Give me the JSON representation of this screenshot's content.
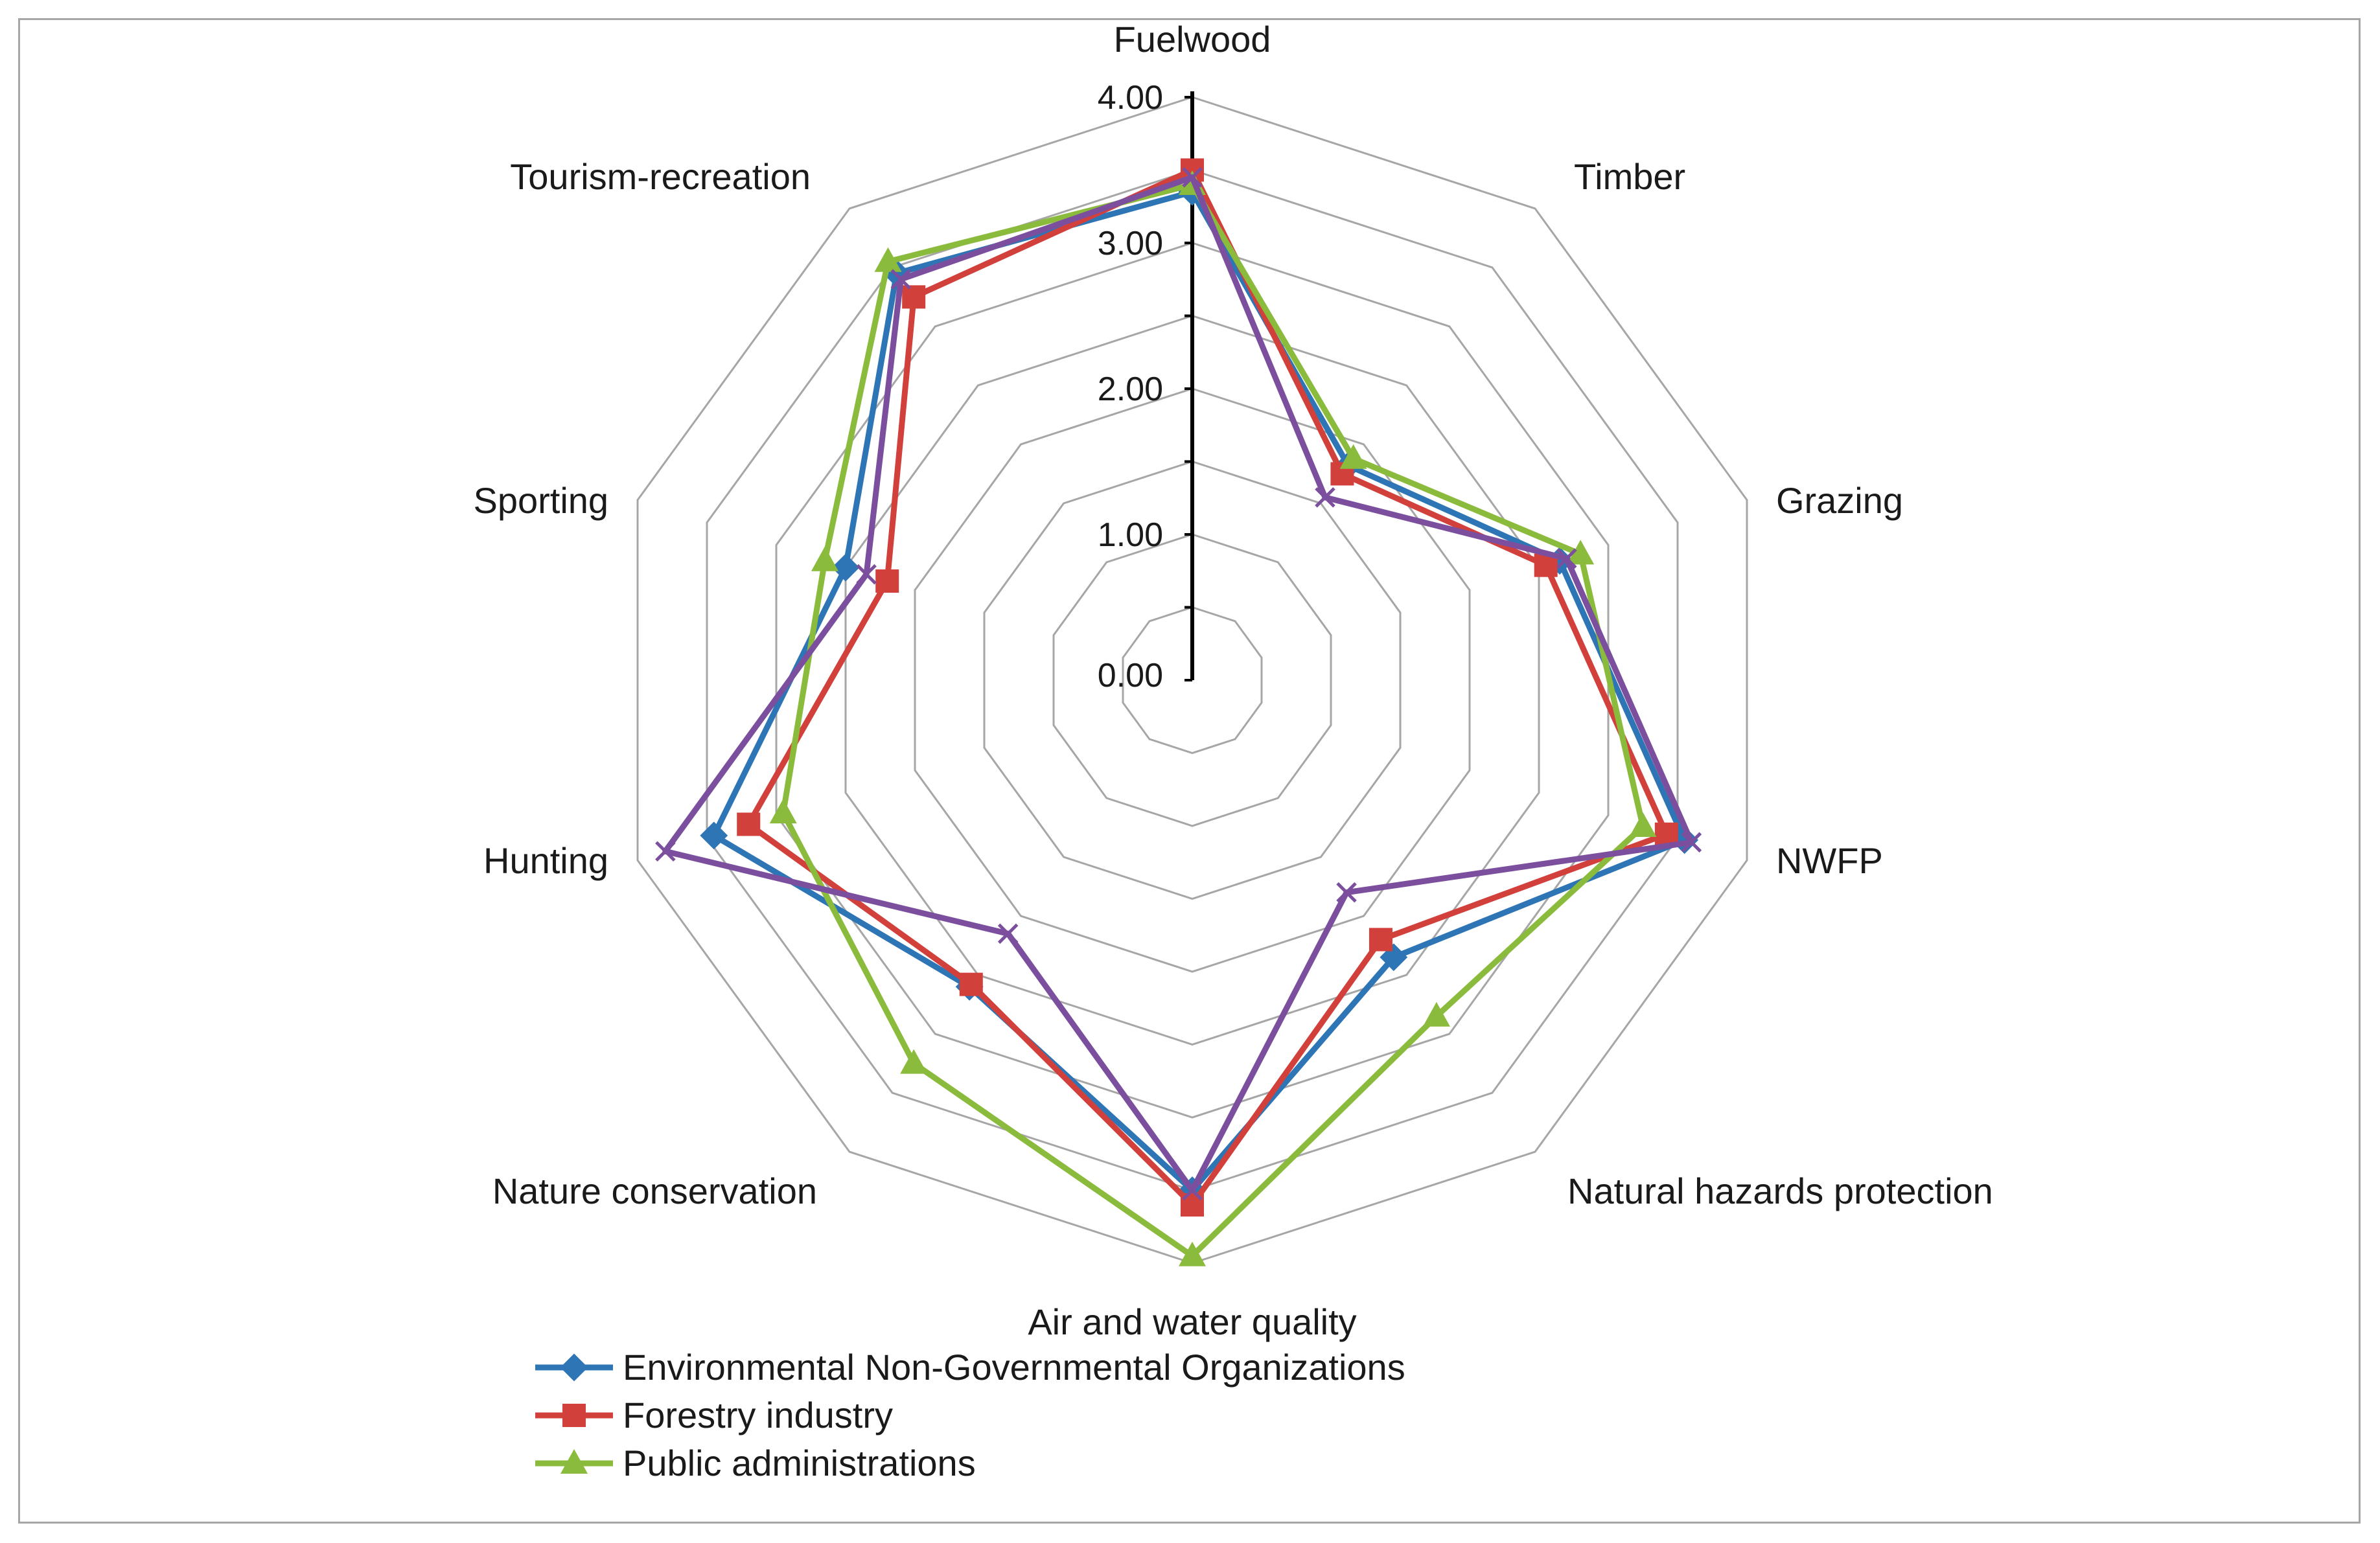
{
  "chart_data": {
    "type": "radar",
    "title": "",
    "categories": [
      "Fuelwood",
      "Timber",
      "Grazing",
      "NWFP",
      "Natural hazards protection",
      "Air and water quality",
      "Nature conservation",
      "Hunting",
      "Sporting",
      "Tourism-recreation"
    ],
    "rlim": [
      0,
      4
    ],
    "ticks": [
      0,
      1,
      2,
      3,
      4
    ],
    "tick_labels": [
      "0.00",
      "1.00",
      "2.00",
      "3.00",
      "4.00"
    ],
    "grid": true,
    "legend_position": "bottom-left",
    "series": [
      {
        "name": "Environmental Non-Governmental Organizations",
        "color": "#2e75b6",
        "marker": "diamond",
        "values": [
          3.35,
          1.82,
          2.65,
          3.55,
          2.35,
          3.5,
          2.6,
          3.45,
          2.5,
          3.45
        ],
        "in_legend": true
      },
      {
        "name": "Forestry industry",
        "color": "#d2403c",
        "marker": "square",
        "values": [
          3.5,
          1.75,
          2.55,
          3.42,
          2.2,
          3.6,
          2.58,
          3.2,
          2.2,
          3.25
        ],
        "in_legend": true
      },
      {
        "name": "Public administrations",
        "color": "#8bbb3c",
        "marker": "triangle",
        "values": [
          3.4,
          1.88,
          2.8,
          3.25,
          2.85,
          3.95,
          3.25,
          2.95,
          2.65,
          3.55
        ],
        "in_legend": true
      },
      {
        "name": "",
        "color": "#7b4f9e",
        "marker": "x",
        "values": [
          3.45,
          1.55,
          2.7,
          3.6,
          1.8,
          3.5,
          2.15,
          3.8,
          2.35,
          3.4
        ],
        "in_legend": false
      }
    ]
  }
}
